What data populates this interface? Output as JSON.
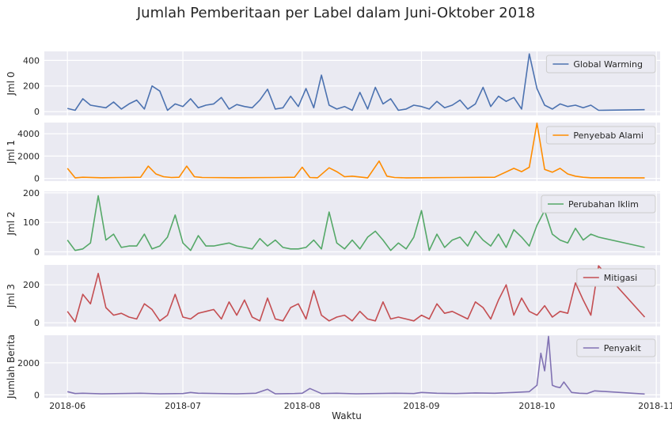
{
  "figure": {
    "title": "Jumlah Pemberitaan per Label dalam Juni-Oktober 2018",
    "xlabel": "Waktu",
    "x_ticks": [
      "2018-06",
      "2018-07",
      "2018-08",
      "2018-09",
      "2018-10",
      "2018-11"
    ],
    "background_color": "#eaeaf2",
    "grid_color": "#ffffff"
  },
  "chart_data": [
    {
      "type": "line",
      "ylabel": "Jml 0",
      "ylim": [
        -30,
        470
      ],
      "y_ticks": [
        0,
        200,
        400
      ],
      "grid": true,
      "legend_position": "top-right",
      "series": [
        {
          "name": "Global Warming",
          "color": "#4c72b0",
          "x": [
            "2018-06-01",
            "2018-06-03",
            "2018-06-05",
            "2018-06-07",
            "2018-06-09",
            "2018-06-11",
            "2018-06-13",
            "2018-06-15",
            "2018-06-17",
            "2018-06-19",
            "2018-06-21",
            "2018-06-23",
            "2018-06-25",
            "2018-06-27",
            "2018-06-29",
            "2018-07-01",
            "2018-07-03",
            "2018-07-05",
            "2018-07-07",
            "2018-07-09",
            "2018-07-11",
            "2018-07-13",
            "2018-07-15",
            "2018-07-17",
            "2018-07-19",
            "2018-07-21",
            "2018-07-23",
            "2018-07-25",
            "2018-07-27",
            "2018-07-29",
            "2018-07-31",
            "2018-08-02",
            "2018-08-04",
            "2018-08-06",
            "2018-08-08",
            "2018-08-10",
            "2018-08-12",
            "2018-08-14",
            "2018-08-16",
            "2018-08-18",
            "2018-08-20",
            "2018-08-22",
            "2018-08-24",
            "2018-08-26",
            "2018-08-28",
            "2018-08-30",
            "2018-09-01",
            "2018-09-03",
            "2018-09-05",
            "2018-09-07",
            "2018-09-09",
            "2018-09-11",
            "2018-09-13",
            "2018-09-15",
            "2018-09-17",
            "2018-09-19",
            "2018-09-21",
            "2018-09-23",
            "2018-09-25",
            "2018-09-27",
            "2018-09-29",
            "2018-10-01",
            "2018-10-03",
            "2018-10-05",
            "2018-10-07",
            "2018-10-09",
            "2018-10-11",
            "2018-10-13",
            "2018-10-15",
            "2018-10-17",
            "2018-10-29"
          ],
          "values": [
            25,
            10,
            100,
            50,
            40,
            30,
            75,
            20,
            60,
            90,
            20,
            200,
            160,
            10,
            60,
            40,
            100,
            30,
            50,
            60,
            110,
            20,
            55,
            40,
            30,
            90,
            175,
            20,
            30,
            120,
            40,
            180,
            30,
            285,
            50,
            20,
            40,
            10,
            150,
            20,
            190,
            60,
            100,
            10,
            20,
            50,
            40,
            20,
            80,
            30,
            50,
            90,
            20,
            60,
            190,
            40,
            120,
            80,
            110,
            20,
            450,
            180,
            50,
            20,
            60,
            40,
            50,
            30,
            50,
            10,
            15
          ]
        }
      ]
    },
    {
      "type": "line",
      "ylabel": "Jml 1",
      "ylim": [
        -240,
        5000
      ],
      "y_ticks": [
        0,
        2000,
        4000
      ],
      "grid": true,
      "legend_position": "top-right",
      "series": [
        {
          "name": "Penyebab Alami",
          "color": "#ff8c00",
          "x": [
            "2018-06-01",
            "2018-06-03",
            "2018-06-05",
            "2018-06-10",
            "2018-06-15",
            "2018-06-20",
            "2018-06-22",
            "2018-06-24",
            "2018-06-26",
            "2018-06-28",
            "2018-06-30",
            "2018-07-02",
            "2018-07-04",
            "2018-07-06",
            "2018-07-15",
            "2018-07-25",
            "2018-07-30",
            "2018-08-01",
            "2018-08-03",
            "2018-08-05",
            "2018-08-08",
            "2018-08-10",
            "2018-08-12",
            "2018-08-14",
            "2018-08-18",
            "2018-08-21",
            "2018-08-23",
            "2018-08-25",
            "2018-08-28",
            "2018-09-01",
            "2018-09-10",
            "2018-09-20",
            "2018-09-25",
            "2018-09-27",
            "2018-09-29",
            "2018-10-01",
            "2018-10-03",
            "2018-10-05",
            "2018-10-07",
            "2018-10-09",
            "2018-10-11",
            "2018-10-13",
            "2018-10-15",
            "2018-10-29"
          ],
          "values": [
            900,
            50,
            100,
            60,
            80,
            100,
            1100,
            400,
            150,
            80,
            100,
            1100,
            150,
            80,
            60,
            80,
            100,
            1000,
            80,
            60,
            950,
            600,
            150,
            200,
            50,
            1550,
            200,
            80,
            50,
            60,
            80,
            100,
            900,
            600,
            1000,
            4950,
            800,
            550,
            900,
            400,
            200,
            100,
            60,
            50
          ]
        }
      ]
    },
    {
      "type": "line",
      "ylabel": "Jml 2",
      "ylim": [
        -12,
        205
      ],
      "y_ticks": [
        0,
        100,
        200
      ],
      "grid": true,
      "legend_position": "top-right",
      "series": [
        {
          "name": "Perubahan Iklim",
          "color": "#55a868",
          "x": [
            "2018-06-01",
            "2018-06-03",
            "2018-06-05",
            "2018-06-07",
            "2018-06-09",
            "2018-06-11",
            "2018-06-13",
            "2018-06-15",
            "2018-06-17",
            "2018-06-19",
            "2018-06-21",
            "2018-06-23",
            "2018-06-25",
            "2018-06-27",
            "2018-06-29",
            "2018-07-01",
            "2018-07-03",
            "2018-07-05",
            "2018-07-07",
            "2018-07-09",
            "2018-07-11",
            "2018-07-13",
            "2018-07-15",
            "2018-07-17",
            "2018-07-19",
            "2018-07-21",
            "2018-07-23",
            "2018-07-25",
            "2018-07-27",
            "2018-07-29",
            "2018-07-31",
            "2018-08-02",
            "2018-08-04",
            "2018-08-06",
            "2018-08-08",
            "2018-08-10",
            "2018-08-12",
            "2018-08-14",
            "2018-08-16",
            "2018-08-18",
            "2018-08-20",
            "2018-08-22",
            "2018-08-24",
            "2018-08-26",
            "2018-08-28",
            "2018-08-30",
            "2018-09-01",
            "2018-09-03",
            "2018-09-05",
            "2018-09-07",
            "2018-09-09",
            "2018-09-11",
            "2018-09-13",
            "2018-09-15",
            "2018-09-17",
            "2018-09-19",
            "2018-09-21",
            "2018-09-23",
            "2018-09-25",
            "2018-09-27",
            "2018-09-29",
            "2018-10-01",
            "2018-10-03",
            "2018-10-05",
            "2018-10-07",
            "2018-10-09",
            "2018-10-11",
            "2018-10-13",
            "2018-10-15",
            "2018-10-17",
            "2018-10-29"
          ],
          "values": [
            40,
            5,
            10,
            30,
            190,
            40,
            60,
            15,
            20,
            20,
            60,
            10,
            20,
            50,
            125,
            30,
            5,
            55,
            20,
            20,
            25,
            30,
            20,
            15,
            10,
            45,
            20,
            40,
            15,
            10,
            10,
            15,
            40,
            10,
            135,
            30,
            10,
            40,
            10,
            50,
            70,
            40,
            5,
            30,
            10,
            50,
            140,
            5,
            60,
            15,
            40,
            50,
            20,
            70,
            40,
            20,
            60,
            15,
            75,
            50,
            20,
            90,
            140,
            60,
            40,
            30,
            80,
            40,
            60,
            50,
            15
          ]
        }
      ]
    },
    {
      "type": "line",
      "ylabel": "Jml 3",
      "ylim": [
        -20,
        305
      ],
      "y_ticks": [
        0,
        200
      ],
      "grid": true,
      "legend_position": "top-right",
      "series": [
        {
          "name": "Mitigasi",
          "color": "#c44e52",
          "x": [
            "2018-06-01",
            "2018-06-03",
            "2018-06-05",
            "2018-06-07",
            "2018-06-09",
            "2018-06-11",
            "2018-06-13",
            "2018-06-15",
            "2018-06-17",
            "2018-06-19",
            "2018-06-21",
            "2018-06-23",
            "2018-06-25",
            "2018-06-27",
            "2018-06-29",
            "2018-07-01",
            "2018-07-03",
            "2018-07-05",
            "2018-07-07",
            "2018-07-09",
            "2018-07-11",
            "2018-07-13",
            "2018-07-15",
            "2018-07-17",
            "2018-07-19",
            "2018-07-21",
            "2018-07-23",
            "2018-07-25",
            "2018-07-27",
            "2018-07-29",
            "2018-07-31",
            "2018-08-02",
            "2018-08-04",
            "2018-08-06",
            "2018-08-08",
            "2018-08-10",
            "2018-08-12",
            "2018-08-14",
            "2018-08-16",
            "2018-08-18",
            "2018-08-20",
            "2018-08-22",
            "2018-08-24",
            "2018-08-26",
            "2018-08-28",
            "2018-08-30",
            "2018-09-01",
            "2018-09-03",
            "2018-09-05",
            "2018-09-07",
            "2018-09-09",
            "2018-09-11",
            "2018-09-13",
            "2018-09-15",
            "2018-09-17",
            "2018-09-19",
            "2018-09-21",
            "2018-09-23",
            "2018-09-25",
            "2018-09-27",
            "2018-09-29",
            "2018-10-01",
            "2018-10-03",
            "2018-10-05",
            "2018-10-07",
            "2018-10-09",
            "2018-10-11",
            "2018-10-13",
            "2018-10-15",
            "2018-10-17",
            "2018-10-29"
          ],
          "values": [
            60,
            5,
            150,
            100,
            260,
            80,
            40,
            50,
            30,
            20,
            100,
            70,
            10,
            40,
            150,
            30,
            20,
            50,
            60,
            70,
            20,
            110,
            40,
            120,
            30,
            10,
            130,
            20,
            10,
            80,
            100,
            20,
            170,
            40,
            10,
            30,
            40,
            10,
            60,
            20,
            10,
            110,
            20,
            30,
            20,
            10,
            40,
            20,
            100,
            50,
            60,
            40,
            20,
            110,
            80,
            20,
            120,
            200,
            40,
            130,
            60,
            40,
            90,
            30,
            60,
            50,
            210,
            120,
            40,
            300,
            30
          ]
        }
      ]
    },
    {
      "type": "line",
      "ylabel": "Jumlah Berita",
      "ylim": [
        -180,
        3720
      ],
      "y_ticks": [
        0,
        2000
      ],
      "grid": true,
      "legend_position": "top-right",
      "series": [
        {
          "name": "Penyakit",
          "color": "#8172b3",
          "x": [
            "2018-06-01",
            "2018-06-03",
            "2018-06-05",
            "2018-06-10",
            "2018-06-15",
            "2018-06-20",
            "2018-06-25",
            "2018-07-01",
            "2018-07-03",
            "2018-07-05",
            "2018-07-10",
            "2018-07-15",
            "2018-07-20",
            "2018-07-23",
            "2018-07-25",
            "2018-07-30",
            "2018-08-01",
            "2018-08-03",
            "2018-08-06",
            "2018-08-10",
            "2018-08-15",
            "2018-08-20",
            "2018-08-25",
            "2018-08-30",
            "2018-09-01",
            "2018-09-05",
            "2018-09-10",
            "2018-09-15",
            "2018-09-20",
            "2018-09-25",
            "2018-09-29",
            "2018-10-01",
            "2018-10-02",
            "2018-10-03",
            "2018-10-04",
            "2018-10-05",
            "2018-10-06",
            "2018-10-07",
            "2018-10-08",
            "2018-10-10",
            "2018-10-12",
            "2018-10-14",
            "2018-10-16",
            "2018-10-29"
          ],
          "values": [
            200,
            80,
            100,
            60,
            80,
            100,
            60,
            80,
            150,
            100,
            80,
            60,
            100,
            350,
            60,
            80,
            100,
            400,
            80,
            100,
            60,
            80,
            100,
            80,
            150,
            100,
            80,
            120,
            100,
            150,
            200,
            600,
            2600,
            1500,
            3650,
            600,
            500,
            450,
            800,
            150,
            100,
            80,
            250,
            50
          ]
        }
      ]
    }
  ]
}
